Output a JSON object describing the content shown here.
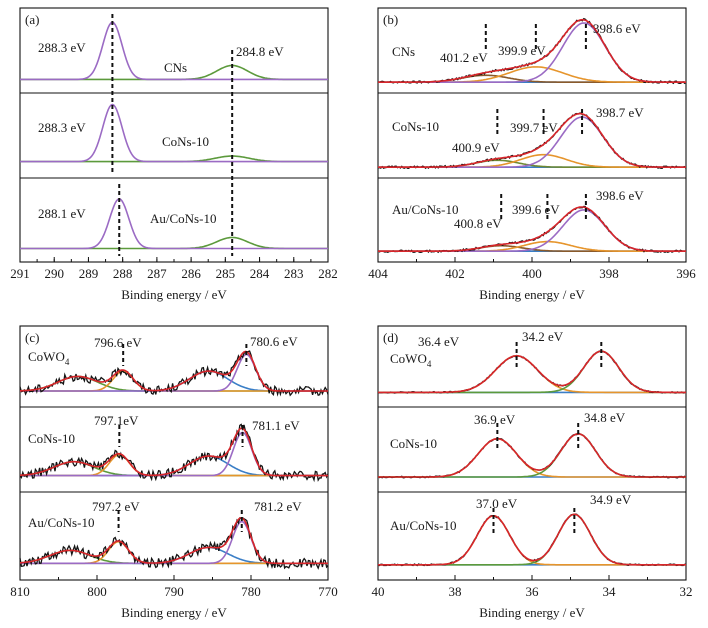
{
  "colors": {
    "envelope_red": "#d8262b",
    "measured_black": "#141414",
    "purple": "#9b6bc4",
    "green": "#5c9a3c",
    "orange": "#e6952c",
    "blue": "#3a7ec6",
    "brown": "#8a5a2b",
    "olive": "#6f8a33"
  },
  "chart_data": [
    {
      "id": "a",
      "tag": "(a)",
      "type": "line",
      "xlabel": "Binding energy / eV",
      "xlim": [
        291,
        282
      ],
      "xticks": [
        291,
        290,
        289,
        288,
        287,
        286,
        285,
        284,
        283,
        282
      ],
      "vlines": [
        {
          "x": 288.3,
          "rows": [
            0,
            1
          ]
        },
        {
          "x": 288.1,
          "rows": [
            2
          ]
        },
        {
          "x": 284.8,
          "rows": [
            0,
            1,
            2
          ]
        }
      ],
      "rows": [
        {
          "sample": "CNs",
          "labels": [
            "288.3 eV",
            "284.8 eV"
          ],
          "baseline": 0.08,
          "peaks": [
            {
              "c": 288.3,
              "w": 0.28,
              "h": 0.82,
              "color": "purple"
            },
            {
              "c": 284.8,
              "w": 0.45,
              "h": 0.2,
              "color": "green"
            }
          ],
          "noise": 0,
          "curves": [
            "green",
            "purple"
          ]
        },
        {
          "sample": "CoNs-10",
          "labels": [
            "288.3 eV"
          ],
          "baseline": 0.12,
          "peaks": [
            {
              "c": 288.3,
              "w": 0.28,
              "h": 0.82,
              "color": "purple"
            },
            {
              "c": 284.8,
              "w": 0.5,
              "h": 0.08,
              "color": "green"
            }
          ],
          "noise": 0,
          "curves": [
            "green",
            "purple"
          ]
        },
        {
          "sample": "Au/CoNs-10",
          "labels": [
            "288.1 eV"
          ],
          "baseline": 0.08,
          "peaks": [
            {
              "c": 288.1,
              "w": 0.28,
              "h": 0.72,
              "color": "purple"
            },
            {
              "c": 284.8,
              "w": 0.45,
              "h": 0.16,
              "color": "green"
            }
          ],
          "noise": 0,
          "curves": [
            "green",
            "purple"
          ]
        }
      ]
    },
    {
      "id": "b",
      "tag": "(b)",
      "type": "line",
      "xlabel": "Binding energy / eV",
      "xlim": [
        404,
        396
      ],
      "xticks": [
        404,
        402,
        400,
        398,
        396
      ],
      "vlines": [
        {
          "x": 398.6,
          "rows": [
            0
          ]
        },
        {
          "x": 399.9,
          "rows": [
            0
          ]
        },
        {
          "x": 401.2,
          "rows": [
            0
          ]
        },
        {
          "x": 398.7,
          "rows": [
            1
          ]
        },
        {
          "x": 399.7,
          "rows": [
            1
          ]
        },
        {
          "x": 400.9,
          "rows": [
            1
          ]
        },
        {
          "x": 398.6,
          "rows": [
            2
          ]
        },
        {
          "x": 399.6,
          "rows": [
            2
          ]
        },
        {
          "x": 400.8,
          "rows": [
            2
          ]
        }
      ],
      "rows": [
        {
          "sample": "CNs",
          "labels": [
            "401.2 eV",
            "399.9 eV",
            "398.6 eV"
          ],
          "baseline": 0.04,
          "peaks": [
            {
              "c": 398.65,
              "w": 0.55,
              "h": 0.85,
              "color": "purple"
            },
            {
              "c": 399.9,
              "w": 0.7,
              "h": 0.22,
              "color": "orange"
            },
            {
              "c": 401.2,
              "w": 0.6,
              "h": 0.1,
              "color": "brown"
            }
          ],
          "noise": 0.015,
          "curves": [
            "blue",
            "brown",
            "orange",
            "purple",
            "measured_black",
            "envelope_red"
          ]
        },
        {
          "sample": "CoNs-10",
          "labels": [
            "400.9 eV",
            "399.7 eV",
            "398.7 eV"
          ],
          "baseline": 0.04,
          "peaks": [
            {
              "c": 398.7,
              "w": 0.55,
              "h": 0.72,
              "color": "purple"
            },
            {
              "c": 399.7,
              "w": 0.6,
              "h": 0.18,
              "color": "orange"
            },
            {
              "c": 400.9,
              "w": 0.55,
              "h": 0.1,
              "color": "olive"
            }
          ],
          "noise": 0.015,
          "curves": [
            "blue",
            "olive",
            "orange",
            "purple",
            "measured_black",
            "envelope_red"
          ]
        },
        {
          "sample": "Au/CoNs-10",
          "labels": [
            "400.8 eV",
            "399.6 eV",
            "398.6 eV"
          ],
          "baseline": 0.04,
          "peaks": [
            {
              "c": 398.65,
              "w": 0.55,
              "h": 0.6,
              "color": "purple"
            },
            {
              "c": 399.6,
              "w": 0.6,
              "h": 0.14,
              "color": "orange"
            },
            {
              "c": 400.8,
              "w": 0.55,
              "h": 0.08,
              "color": "brown"
            }
          ],
          "noise": 0.015,
          "curves": [
            "blue",
            "brown",
            "orange",
            "purple",
            "measured_black",
            "envelope_red"
          ]
        }
      ]
    },
    {
      "id": "c",
      "tag": "(c)",
      "type": "line",
      "xlabel": "Binding energy / eV",
      "xlim": [
        810,
        770
      ],
      "xticks": [
        810,
        800,
        790,
        780,
        770
      ],
      "vlines": [
        {
          "x": 796.6,
          "rows": [
            0
          ]
        },
        {
          "x": 780.6,
          "rows": [
            0
          ]
        },
        {
          "x": 797.1,
          "rows": [
            1
          ]
        },
        {
          "x": 781.1,
          "rows": [
            1
          ]
        },
        {
          "x": 797.2,
          "rows": [
            2
          ]
        },
        {
          "x": 781.2,
          "rows": [
            2
          ]
        }
      ],
      "rows": [
        {
          "sample": "CoWO4",
          "labels": [
            "796.6 eV",
            "780.6 eV"
          ],
          "baseline": 0.12,
          "peaks": [
            {
              "c": 780.6,
              "w": 1.2,
              "h": 0.55,
              "color": "purple"
            },
            {
              "c": 785.5,
              "w": 2.5,
              "h": 0.3,
              "color": "blue"
            },
            {
              "c": 796.6,
              "w": 1.3,
              "h": 0.3,
              "color": "orange"
            },
            {
              "c": 802.5,
              "w": 2.6,
              "h": 0.22,
              "color": "green"
            }
          ],
          "noise": 0.06,
          "curves": [
            "green",
            "blue",
            "orange",
            "purple",
            "measured_black",
            "envelope_red"
          ]
        },
        {
          "sample": "CoNs-10",
          "labels": [
            "797.1eV",
            "781.1 eV"
          ],
          "baseline": 0.12,
          "peaks": [
            {
              "c": 781.1,
              "w": 1.2,
              "h": 0.62,
              "color": "purple"
            },
            {
              "c": 785.5,
              "w": 2.5,
              "h": 0.28,
              "color": "blue"
            },
            {
              "c": 797.1,
              "w": 1.3,
              "h": 0.3,
              "color": "orange"
            },
            {
              "c": 803,
              "w": 2.6,
              "h": 0.2,
              "color": "green"
            }
          ],
          "noise": 0.06,
          "curves": [
            "green",
            "blue",
            "orange",
            "purple",
            "measured_black",
            "envelope_red"
          ]
        },
        {
          "sample": "Au/CoNs-10",
          "labels": [
            "797.2 eV",
            "781.2 eV"
          ],
          "baseline": 0.12,
          "peaks": [
            {
              "c": 781.2,
              "w": 1.2,
              "h": 0.58,
              "color": "purple"
            },
            {
              "c": 785.5,
              "w": 2.5,
              "h": 0.22,
              "color": "blue"
            },
            {
              "c": 797.2,
              "w": 1.3,
              "h": 0.3,
              "color": "orange"
            },
            {
              "c": 803.5,
              "w": 2.6,
              "h": 0.18,
              "color": "green"
            }
          ],
          "noise": 0.06,
          "curves": [
            "green",
            "blue",
            "orange",
            "purple",
            "measured_black",
            "envelope_red"
          ]
        }
      ]
    },
    {
      "id": "d",
      "tag": "(d)",
      "type": "line",
      "xlabel": "Binding energy / eV",
      "xlim": [
        40,
        32
      ],
      "xticks": [
        40,
        38,
        36,
        34,
        32
      ],
      "vlines": [
        {
          "x": 36.4,
          "rows": [
            0
          ]
        },
        {
          "x": 34.2,
          "rows": [
            0
          ]
        },
        {
          "x": 36.9,
          "rows": [
            1
          ]
        },
        {
          "x": 34.8,
          "rows": [
            1
          ]
        },
        {
          "x": 37.0,
          "rows": [
            2
          ]
        },
        {
          "x": 34.9,
          "rows": [
            2
          ]
        }
      ],
      "rows": [
        {
          "sample": "CoWO4",
          "labels": [
            "36.4 eV",
            "34.2 eV"
          ],
          "baseline": 0.1,
          "peaks": [
            {
              "c": 36.4,
              "w": 0.55,
              "h": 0.55,
              "color": "orange"
            },
            {
              "c": 34.2,
              "w": 0.45,
              "h": 0.62,
              "color": "green"
            }
          ],
          "noise": 0.01,
          "curves": [
            "blue",
            "orange",
            "green",
            "measured_black",
            "envelope_red"
          ]
        },
        {
          "sample": "CoNs-10",
          "labels": [
            "36.9 eV",
            "34.8 eV"
          ],
          "baseline": 0.1,
          "peaks": [
            {
              "c": 36.9,
              "w": 0.5,
              "h": 0.55,
              "color": "orange"
            },
            {
              "c": 34.8,
              "w": 0.45,
              "h": 0.62,
              "color": "green"
            }
          ],
          "noise": 0.01,
          "curves": [
            "blue",
            "orange",
            "green",
            "measured_black",
            "envelope_red"
          ]
        },
        {
          "sample": "Au/CoNs-10",
          "labels": [
            "37.0 eV",
            "34.9 eV"
          ],
          "baseline": 0.1,
          "peaks": [
            {
              "c": 37.0,
              "w": 0.42,
              "h": 0.68,
              "color": "orange"
            },
            {
              "c": 34.9,
              "w": 0.42,
              "h": 0.7,
              "color": "green"
            }
          ],
          "noise": 0.01,
          "curves": [
            "blue",
            "orange",
            "green",
            "measured_black",
            "envelope_red"
          ]
        }
      ]
    }
  ]
}
